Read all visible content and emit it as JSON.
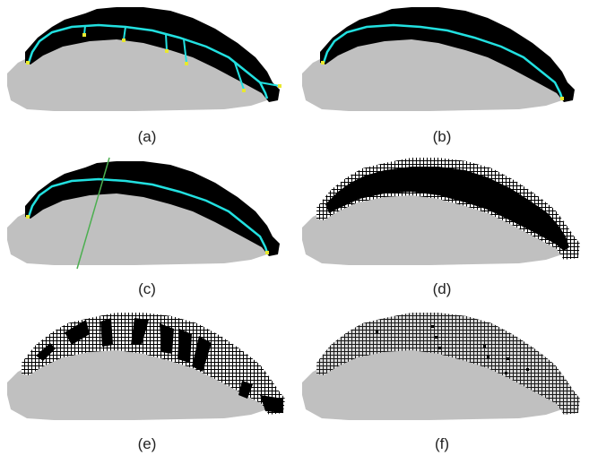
{
  "figure": {
    "panels": [
      {
        "id": "a",
        "label": "(a)",
        "style": "skeleton-branches"
      },
      {
        "id": "b",
        "label": "(b)",
        "style": "skeleton-pruned"
      },
      {
        "id": "c",
        "label": "(c)",
        "style": "skeleton-cut-line"
      },
      {
        "id": "d",
        "label": "(d)",
        "style": "voxel-outline"
      },
      {
        "id": "e",
        "label": "(e)",
        "style": "voxel-stripes"
      },
      {
        "id": "f",
        "label": "(f)",
        "style": "voxel-grid"
      }
    ],
    "colors": {
      "background": "#ffffff",
      "body_gray": "#c0c0c0",
      "region_black": "#000000",
      "skeleton_cyan": "#22e0e0",
      "endpoint_yellow": "#e8e830",
      "cut_line_green": "#4caf50",
      "grid_line": "#ffffff"
    }
  }
}
